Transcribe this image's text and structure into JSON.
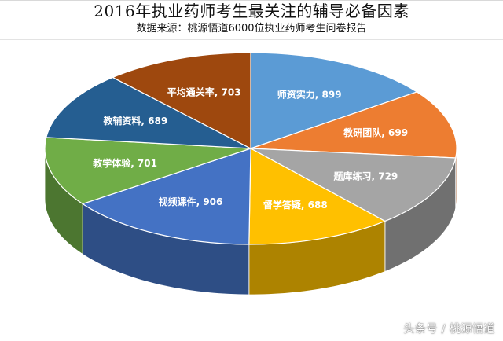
{
  "chart_data": {
    "type": "pie",
    "title": "2016年执业药师考生最关注的辅导必备因素",
    "subtitle": "数据来源：桃源悟道6000位执业药师考生问卷报告",
    "style": "3d",
    "slices": [
      {
        "label": "师资实力",
        "value": 899,
        "color": "#5b9bd5"
      },
      {
        "label": "教研团队",
        "value": 699,
        "color": "#ed7d31"
      },
      {
        "label": "题库练习",
        "value": 729,
        "color": "#a5a5a5"
      },
      {
        "label": "督学答疑",
        "value": 688,
        "color": "#ffc000"
      },
      {
        "label": "视频课件",
        "value": 906,
        "color": "#4472c4"
      },
      {
        "label": "教学体验",
        "value": 701,
        "color": "#70ad47"
      },
      {
        "label": "教辅资料",
        "value": 689,
        "color": "#255e91"
      },
      {
        "label": "平均通关率",
        "value": 703,
        "color": "#9e480e"
      }
    ]
  },
  "watermark": "头条号 / 桃源悟道"
}
